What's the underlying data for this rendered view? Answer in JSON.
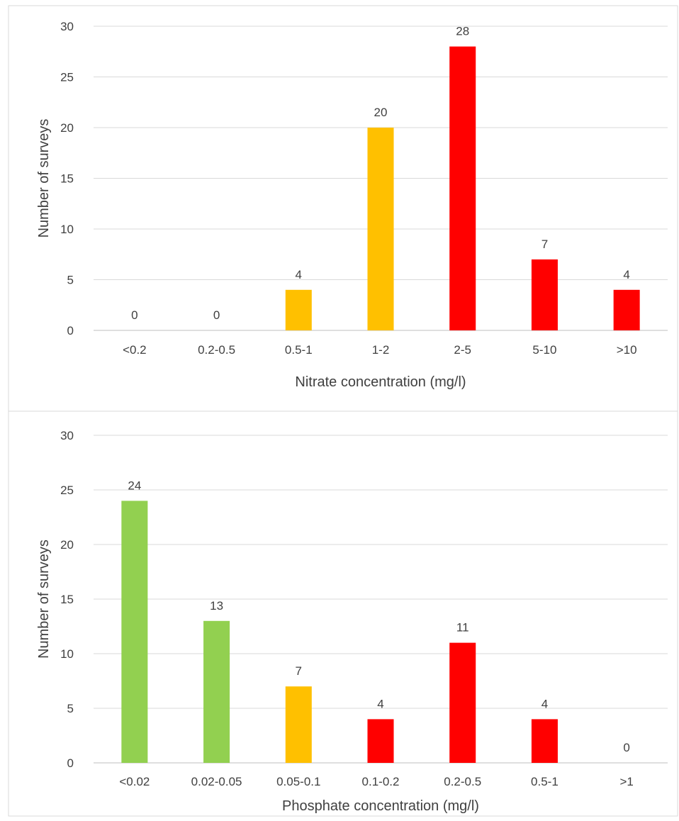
{
  "chart_data": [
    {
      "type": "bar",
      "title": "",
      "categories": [
        "<0.2",
        "0.2-0.5",
        "0.5-1",
        "1-2",
        "2-5",
        "5-10",
        ">10"
      ],
      "values": [
        0,
        0,
        4,
        20,
        28,
        7,
        4
      ],
      "colors": [
        "#FFC000",
        "#FFC000",
        "#FFC000",
        "#FFC000",
        "#FF0000",
        "#FF0000",
        "#FF0000"
      ],
      "xlabel": "Nitrate concentration (mg/l)",
      "ylabel": "Number of surveys",
      "ylim": [
        0,
        30
      ],
      "yticks": [
        0,
        5,
        10,
        15,
        20,
        25,
        30
      ],
      "grid": true,
      "data_labels": true
    },
    {
      "type": "bar",
      "title": "",
      "categories": [
        "<0.02",
        "0.02-0.05",
        "0.05-0.1",
        "0.1-0.2",
        "0.2-0.5",
        "0.5-1",
        ">1"
      ],
      "values": [
        24,
        13,
        7,
        4,
        11,
        4,
        0
      ],
      "colors": [
        "#92D050",
        "#92D050",
        "#FFC000",
        "#FF0000",
        "#FF0000",
        "#FF0000",
        "#FF0000"
      ],
      "xlabel": "Phosphate concentration (mg/l)",
      "ylabel": "Number of surveys",
      "ylim": [
        0,
        30
      ],
      "yticks": [
        0,
        5,
        10,
        15,
        20,
        25,
        30
      ],
      "grid": true,
      "data_labels": true
    }
  ]
}
